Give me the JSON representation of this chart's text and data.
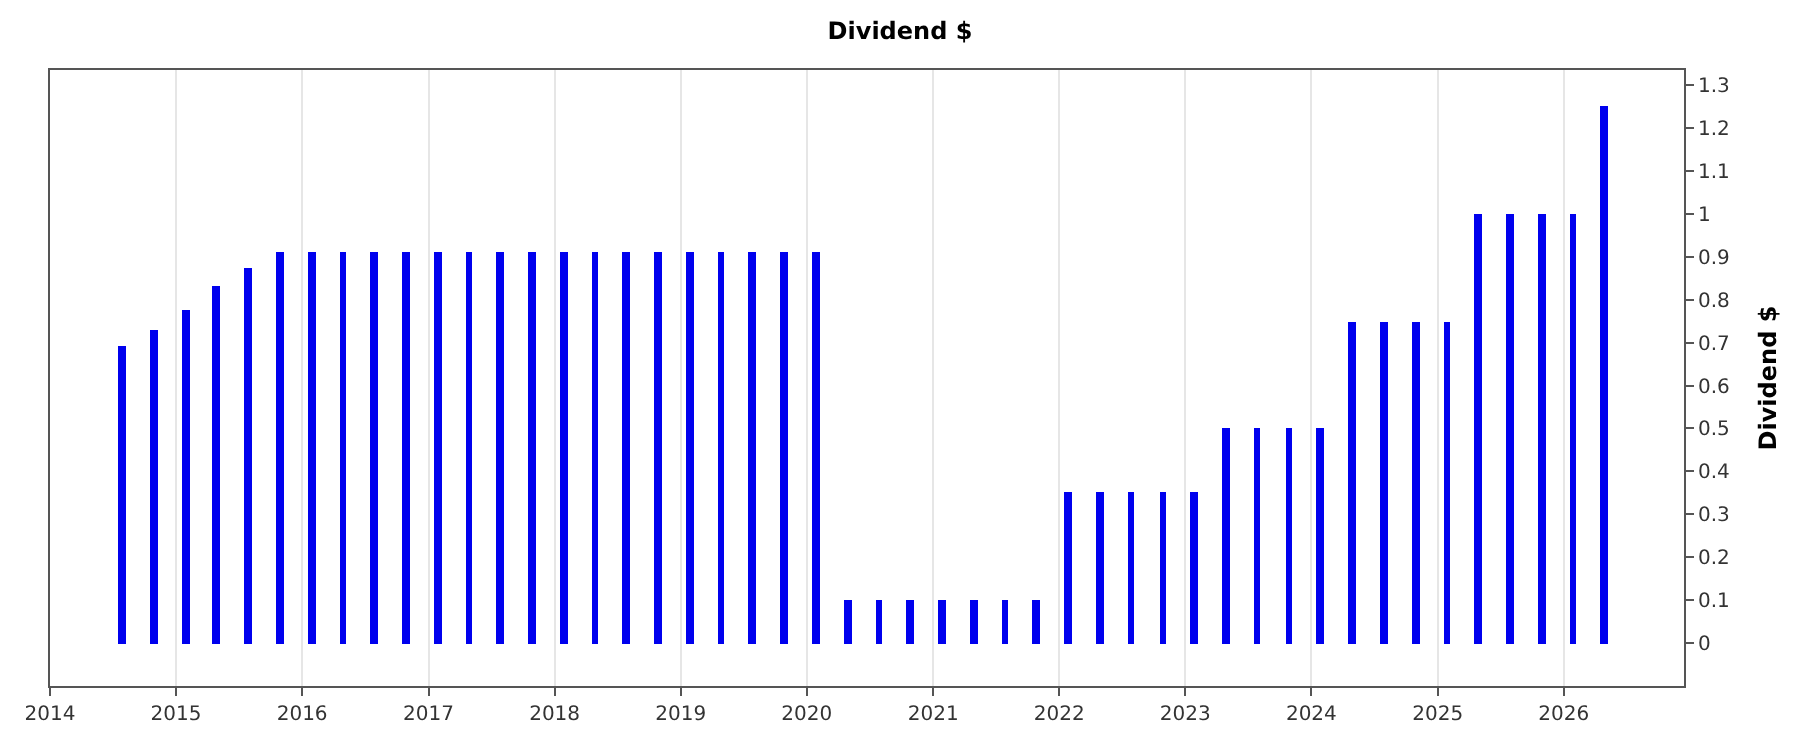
{
  "chart_data": {
    "type": "bar",
    "title": "Dividend $",
    "ylabel": "Dividend $",
    "x": [
      "2014-07-29",
      "2014-10-28",
      "2015-01-28",
      "2015-04-28",
      "2015-07-28",
      "2015-10-28",
      "2016-01-28",
      "2016-04-28",
      "2016-07-28",
      "2016-10-28",
      "2017-01-28",
      "2017-04-28",
      "2017-07-28",
      "2017-10-28",
      "2018-01-28",
      "2018-04-28",
      "2018-07-28",
      "2018-10-28",
      "2019-01-28",
      "2019-04-28",
      "2019-07-28",
      "2019-10-28",
      "2020-01-28",
      "2020-04-28",
      "2020-07-28",
      "2020-10-28",
      "2021-01-28",
      "2021-04-28",
      "2021-07-28",
      "2021-10-28",
      "2022-01-28",
      "2022-04-28",
      "2022-07-28",
      "2022-10-28",
      "2023-01-28",
      "2023-04-28",
      "2023-07-28",
      "2023-10-28",
      "2024-01-28",
      "2024-04-28",
      "2024-07-28",
      "2024-10-28",
      "2025-01-28",
      "2025-04-28",
      "2025-07-28",
      "2025-10-28",
      "2026-01-28",
      "2026-04-28"
    ],
    "values": [
      0.69,
      0.73,
      0.775,
      0.83,
      0.875,
      0.91,
      0.91,
      0.91,
      0.91,
      0.91,
      0.91,
      0.91,
      0.91,
      0.91,
      0.91,
      0.91,
      0.91,
      0.91,
      0.91,
      0.91,
      0.91,
      0.91,
      0.91,
      0.1,
      0.1,
      0.1,
      0.1,
      0.1,
      0.1,
      0.1,
      0.35,
      0.35,
      0.35,
      0.35,
      0.35,
      0.5,
      0.5,
      0.5,
      0.5,
      0.75,
      0.75,
      0.75,
      0.75,
      1.0,
      1.0,
      1.0,
      1.0,
      1.25
    ],
    "color": "#0000ee",
    "xlim": [
      "2014-01-01",
      "2026-12-15"
    ],
    "xticks": [
      "2014",
      "2015",
      "2016",
      "2017",
      "2018",
      "2019",
      "2020",
      "2021",
      "2022",
      "2023",
      "2024",
      "2025",
      "2026"
    ],
    "ylim": [
      -0.1,
      1.335
    ],
    "yticks": [
      0,
      0.1,
      0.2,
      0.3,
      0.4,
      0.5,
      0.6,
      0.7,
      0.8,
      0.9,
      1,
      1.1,
      1.2,
      1.3
    ],
    "grid": "x"
  }
}
